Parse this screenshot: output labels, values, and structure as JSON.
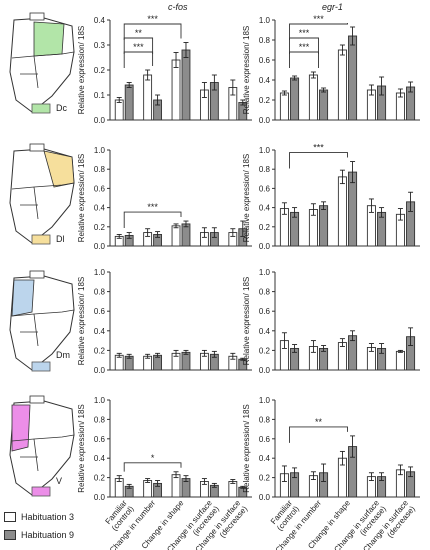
{
  "titles": [
    "c-fos",
    "egr-1"
  ],
  "legend": [
    {
      "label": "Habituation 3",
      "color": "#ffffff"
    },
    {
      "label": "Habituation 9",
      "color": "#8c8c8c"
    }
  ],
  "regions": [
    {
      "label": "Dc",
      "color": "#b2e5a8"
    },
    {
      "label": "Dl",
      "color": "#f6df9c"
    },
    {
      "label": "Dm",
      "color": "#bcd5ec"
    },
    {
      "label": "V",
      "color": "#ec8ee8"
    }
  ],
  "categories": [
    "Familiar (control)",
    "Change in number",
    "Change in shape",
    "Change in surface (increase)",
    "Change in surface (decrease)"
  ],
  "ylabel": "Relative expression/ 18S",
  "chart_data": [
    {
      "type": "bar",
      "gene": "c-fos",
      "region": "Dc",
      "ylim": [
        0,
        0.4
      ],
      "ticks": [
        0.0,
        0.1,
        0.2,
        0.3,
        0.4
      ],
      "series": [
        {
          "name": "Habituation 3",
          "values": [
            0.08,
            0.18,
            0.24,
            0.12,
            0.13
          ],
          "err": [
            0.01,
            0.02,
            0.03,
            0.03,
            0.03
          ]
        },
        {
          "name": "Habituation 9",
          "values": [
            0.14,
            0.08,
            0.28,
            0.15,
            0.07
          ],
          "err": [
            0.01,
            0.02,
            0.03,
            0.03,
            0.01
          ]
        }
      ],
      "brackets": [
        {
          "x1": 0,
          "x2": 2,
          "label": "***"
        },
        {
          "x1": 0,
          "x2": 1,
          "label": "**"
        },
        {
          "x1": 0,
          "x2": 1,
          "label": "***"
        }
      ]
    },
    {
      "type": "bar",
      "gene": "egr-1",
      "region": "Dc",
      "ylim": [
        0,
        1.0
      ],
      "ticks": [
        0.0,
        0.2,
        0.4,
        0.6,
        0.8,
        1.0
      ],
      "series": [
        {
          "name": "Habituation 3",
          "values": [
            0.27,
            0.45,
            0.7,
            0.3,
            0.27
          ],
          "err": [
            0.02,
            0.03,
            0.05,
            0.05,
            0.04
          ]
        },
        {
          "name": "Habituation 9",
          "values": [
            0.42,
            0.3,
            0.84,
            0.34,
            0.33
          ],
          "err": [
            0.02,
            0.02,
            0.09,
            0.09,
            0.05
          ]
        }
      ],
      "brackets": [
        {
          "x1": 0,
          "x2": 2,
          "label": "***"
        },
        {
          "x1": 0,
          "x2": 1,
          "label": "***"
        },
        {
          "x1": 0,
          "x2": 1,
          "label": "***"
        }
      ]
    },
    {
      "type": "bar",
      "gene": "c-fos",
      "region": "Dl",
      "ylim": [
        0,
        1.0
      ],
      "ticks": [
        0.0,
        0.2,
        0.4,
        0.6,
        0.8,
        1.0
      ],
      "series": [
        {
          "name": "Habituation 3",
          "values": [
            0.1,
            0.14,
            0.21,
            0.14,
            0.14
          ],
          "err": [
            0.02,
            0.04,
            0.02,
            0.05,
            0.04
          ]
        },
        {
          "name": "Habituation 9",
          "values": [
            0.11,
            0.12,
            0.23,
            0.14,
            0.18
          ],
          "err": [
            0.03,
            0.03,
            0.03,
            0.05,
            0.08
          ]
        }
      ],
      "brackets": [
        {
          "x1": 0,
          "x2": 2,
          "label": "***"
        }
      ]
    },
    {
      "type": "bar",
      "gene": "egr-1",
      "region": "Dl",
      "ylim": [
        0,
        1.0
      ],
      "ticks": [
        0.0,
        0.2,
        0.4,
        0.6,
        0.8,
        1.0
      ],
      "series": [
        {
          "name": "Habituation 3",
          "values": [
            0.39,
            0.38,
            0.72,
            0.42,
            0.33
          ],
          "err": [
            0.06,
            0.06,
            0.07,
            0.07,
            0.06
          ]
        },
        {
          "name": "Habituation 9",
          "values": [
            0.35,
            0.42,
            0.77,
            0.35,
            0.46
          ],
          "err": [
            0.05,
            0.04,
            0.11,
            0.05,
            0.1
          ]
        }
      ],
      "brackets": [
        {
          "x1": 0,
          "x2": 2,
          "label": "***"
        }
      ]
    },
    {
      "type": "bar",
      "gene": "c-fos",
      "region": "Dm",
      "ylim": [
        0,
        1.0
      ],
      "ticks": [
        0.0,
        0.2,
        0.4,
        0.6,
        0.8,
        1.0
      ],
      "series": [
        {
          "name": "Habituation 3",
          "values": [
            0.15,
            0.14,
            0.17,
            0.17,
            0.14
          ],
          "err": [
            0.02,
            0.02,
            0.03,
            0.03,
            0.03
          ]
        },
        {
          "name": "Habituation 9",
          "values": [
            0.14,
            0.15,
            0.18,
            0.16,
            0.11
          ],
          "err": [
            0.02,
            0.02,
            0.02,
            0.03,
            0.01
          ]
        }
      ],
      "brackets": []
    },
    {
      "type": "bar",
      "gene": "egr-1",
      "region": "Dm",
      "ylim": [
        0,
        1.0
      ],
      "ticks": [
        0.0,
        0.2,
        0.4,
        0.6,
        0.8,
        1.0
      ],
      "series": [
        {
          "name": "Habituation 3",
          "values": [
            0.3,
            0.24,
            0.28,
            0.23,
            0.19
          ],
          "err": [
            0.08,
            0.06,
            0.04,
            0.04,
            0.01
          ]
        },
        {
          "name": "Habituation 9",
          "values": [
            0.22,
            0.22,
            0.35,
            0.22,
            0.34
          ],
          "err": [
            0.04,
            0.03,
            0.05,
            0.05,
            0.09
          ]
        }
      ],
      "brackets": []
    },
    {
      "type": "bar",
      "gene": "c-fos",
      "region": "V",
      "ylim": [
        0,
        1.0
      ],
      "ticks": [
        0.0,
        0.2,
        0.4,
        0.6,
        0.8,
        1.0
      ],
      "series": [
        {
          "name": "Habituation 3",
          "values": [
            0.19,
            0.17,
            0.23,
            0.16,
            0.16
          ],
          "err": [
            0.03,
            0.02,
            0.03,
            0.03,
            0.02
          ]
        },
        {
          "name": "Habituation 9",
          "values": [
            0.11,
            0.14,
            0.19,
            0.12,
            0.1
          ],
          "err": [
            0.02,
            0.03,
            0.03,
            0.02,
            0.01
          ]
        }
      ],
      "brackets": [
        {
          "x1": 0,
          "x2": 2,
          "label": "*"
        }
      ]
    },
    {
      "type": "bar",
      "gene": "egr-1",
      "region": "V",
      "ylim": [
        0,
        1.0
      ],
      "ticks": [
        0.0,
        0.2,
        0.4,
        0.6,
        0.8,
        1.0
      ],
      "series": [
        {
          "name": "Habituation 3",
          "values": [
            0.24,
            0.22,
            0.4,
            0.21,
            0.28
          ],
          "err": [
            0.08,
            0.04,
            0.07,
            0.04,
            0.05
          ]
        },
        {
          "name": "Habituation 9",
          "values": [
            0.25,
            0.25,
            0.52,
            0.21,
            0.26
          ],
          "err": [
            0.05,
            0.09,
            0.11,
            0.04,
            0.05
          ]
        }
      ],
      "brackets": [
        {
          "x1": 0,
          "x2": 2,
          "label": "**"
        }
      ]
    }
  ]
}
